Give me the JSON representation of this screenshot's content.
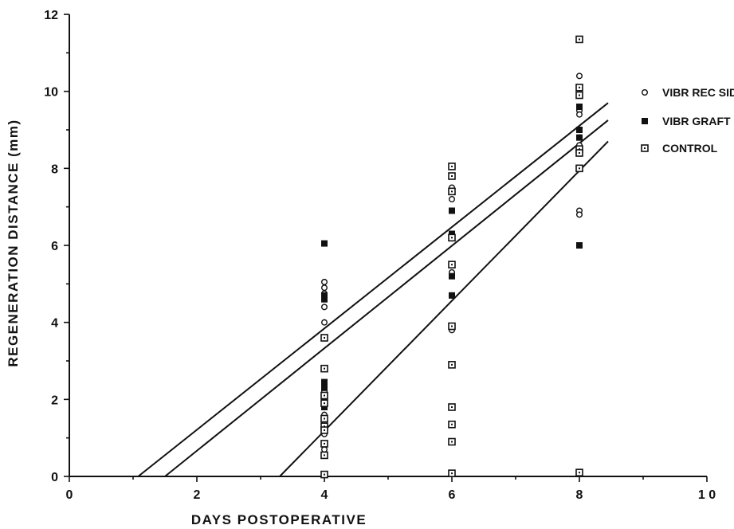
{
  "chart_data": {
    "type": "scatter",
    "xlabel": "DAYS POSTOPERATIVE",
    "ylabel": "REGENERATION DISTANCE (mm)",
    "xlim": [
      0,
      10
    ],
    "ylim": [
      0,
      12
    ],
    "xticks": [
      0,
      2,
      4,
      6,
      8,
      10
    ],
    "xtick_labels": [
      "0",
      "2",
      "4",
      "6",
      "8",
      "1 0"
    ],
    "yticks": [
      0,
      2,
      4,
      6,
      8,
      10,
      12
    ],
    "ytick_labels": [
      "0",
      "2",
      "4",
      "6",
      "8",
      "10",
      "12"
    ],
    "grid": false,
    "legend_position": "right",
    "series": [
      {
        "name": "VIBR REC SIDE",
        "marker": "open-circle",
        "points": [
          [
            4,
            5.05
          ],
          [
            4,
            4.9
          ],
          [
            4,
            4.75
          ],
          [
            4,
            4.4
          ],
          [
            4,
            4.0
          ],
          [
            4,
            2.4
          ],
          [
            4,
            2.2
          ],
          [
            4,
            2.0
          ],
          [
            4,
            1.6
          ],
          [
            4,
            1.4
          ],
          [
            4,
            1.1
          ],
          [
            4,
            0.7
          ],
          [
            6,
            7.5
          ],
          [
            6,
            7.2
          ],
          [
            6,
            6.2
          ],
          [
            6,
            5.3
          ],
          [
            6,
            4.7
          ],
          [
            6,
            3.8
          ],
          [
            8,
            10.4
          ],
          [
            8,
            9.6
          ],
          [
            8,
            9.5
          ],
          [
            8,
            9.4
          ],
          [
            8,
            8.8
          ],
          [
            8,
            8.6
          ],
          [
            8,
            6.9
          ],
          [
            8,
            6.8
          ]
        ]
      },
      {
        "name": "VIBR GRAFT",
        "marker": "filled-square",
        "points": [
          [
            4,
            6.05
          ],
          [
            4,
            4.7
          ],
          [
            4,
            4.6
          ],
          [
            4,
            2.45
          ],
          [
            4,
            2.3
          ],
          [
            4,
            2.0
          ],
          [
            4,
            1.8
          ],
          [
            6,
            6.9
          ],
          [
            6,
            6.3
          ],
          [
            6,
            5.2
          ],
          [
            6,
            4.7
          ],
          [
            8,
            9.6
          ],
          [
            8,
            9.0
          ],
          [
            8,
            8.8
          ],
          [
            8,
            6.0
          ]
        ]
      },
      {
        "name": "CONTROL",
        "marker": "dotted-square",
        "points": [
          [
            4,
            3.6
          ],
          [
            4,
            2.8
          ],
          [
            4,
            2.1
          ],
          [
            4,
            1.9
          ],
          [
            4,
            1.5
          ],
          [
            4,
            1.3
          ],
          [
            4,
            1.2
          ],
          [
            4,
            0.85
          ],
          [
            4,
            0.55
          ],
          [
            4,
            0.05
          ],
          [
            6,
            8.05
          ],
          [
            6,
            7.8
          ],
          [
            6,
            7.4
          ],
          [
            6,
            6.2
          ],
          [
            6,
            5.5
          ],
          [
            6,
            3.9
          ],
          [
            6,
            2.9
          ],
          [
            6,
            1.8
          ],
          [
            6,
            1.35
          ],
          [
            6,
            0.9
          ],
          [
            6,
            0.08
          ],
          [
            8,
            11.35
          ],
          [
            8,
            10.1
          ],
          [
            8,
            9.9
          ],
          [
            8,
            8.5
          ],
          [
            8,
            8.4
          ],
          [
            8,
            8.0
          ],
          [
            8,
            0.1
          ]
        ]
      }
    ],
    "fit_lines": [
      {
        "x": [
          1.08,
          8.45
        ],
        "y": [
          0,
          9.7
        ]
      },
      {
        "x": [
          1.5,
          8.45
        ],
        "y": [
          0,
          9.25
        ]
      },
      {
        "x": [
          3.3,
          8.45
        ],
        "y": [
          0,
          8.7
        ]
      }
    ]
  }
}
